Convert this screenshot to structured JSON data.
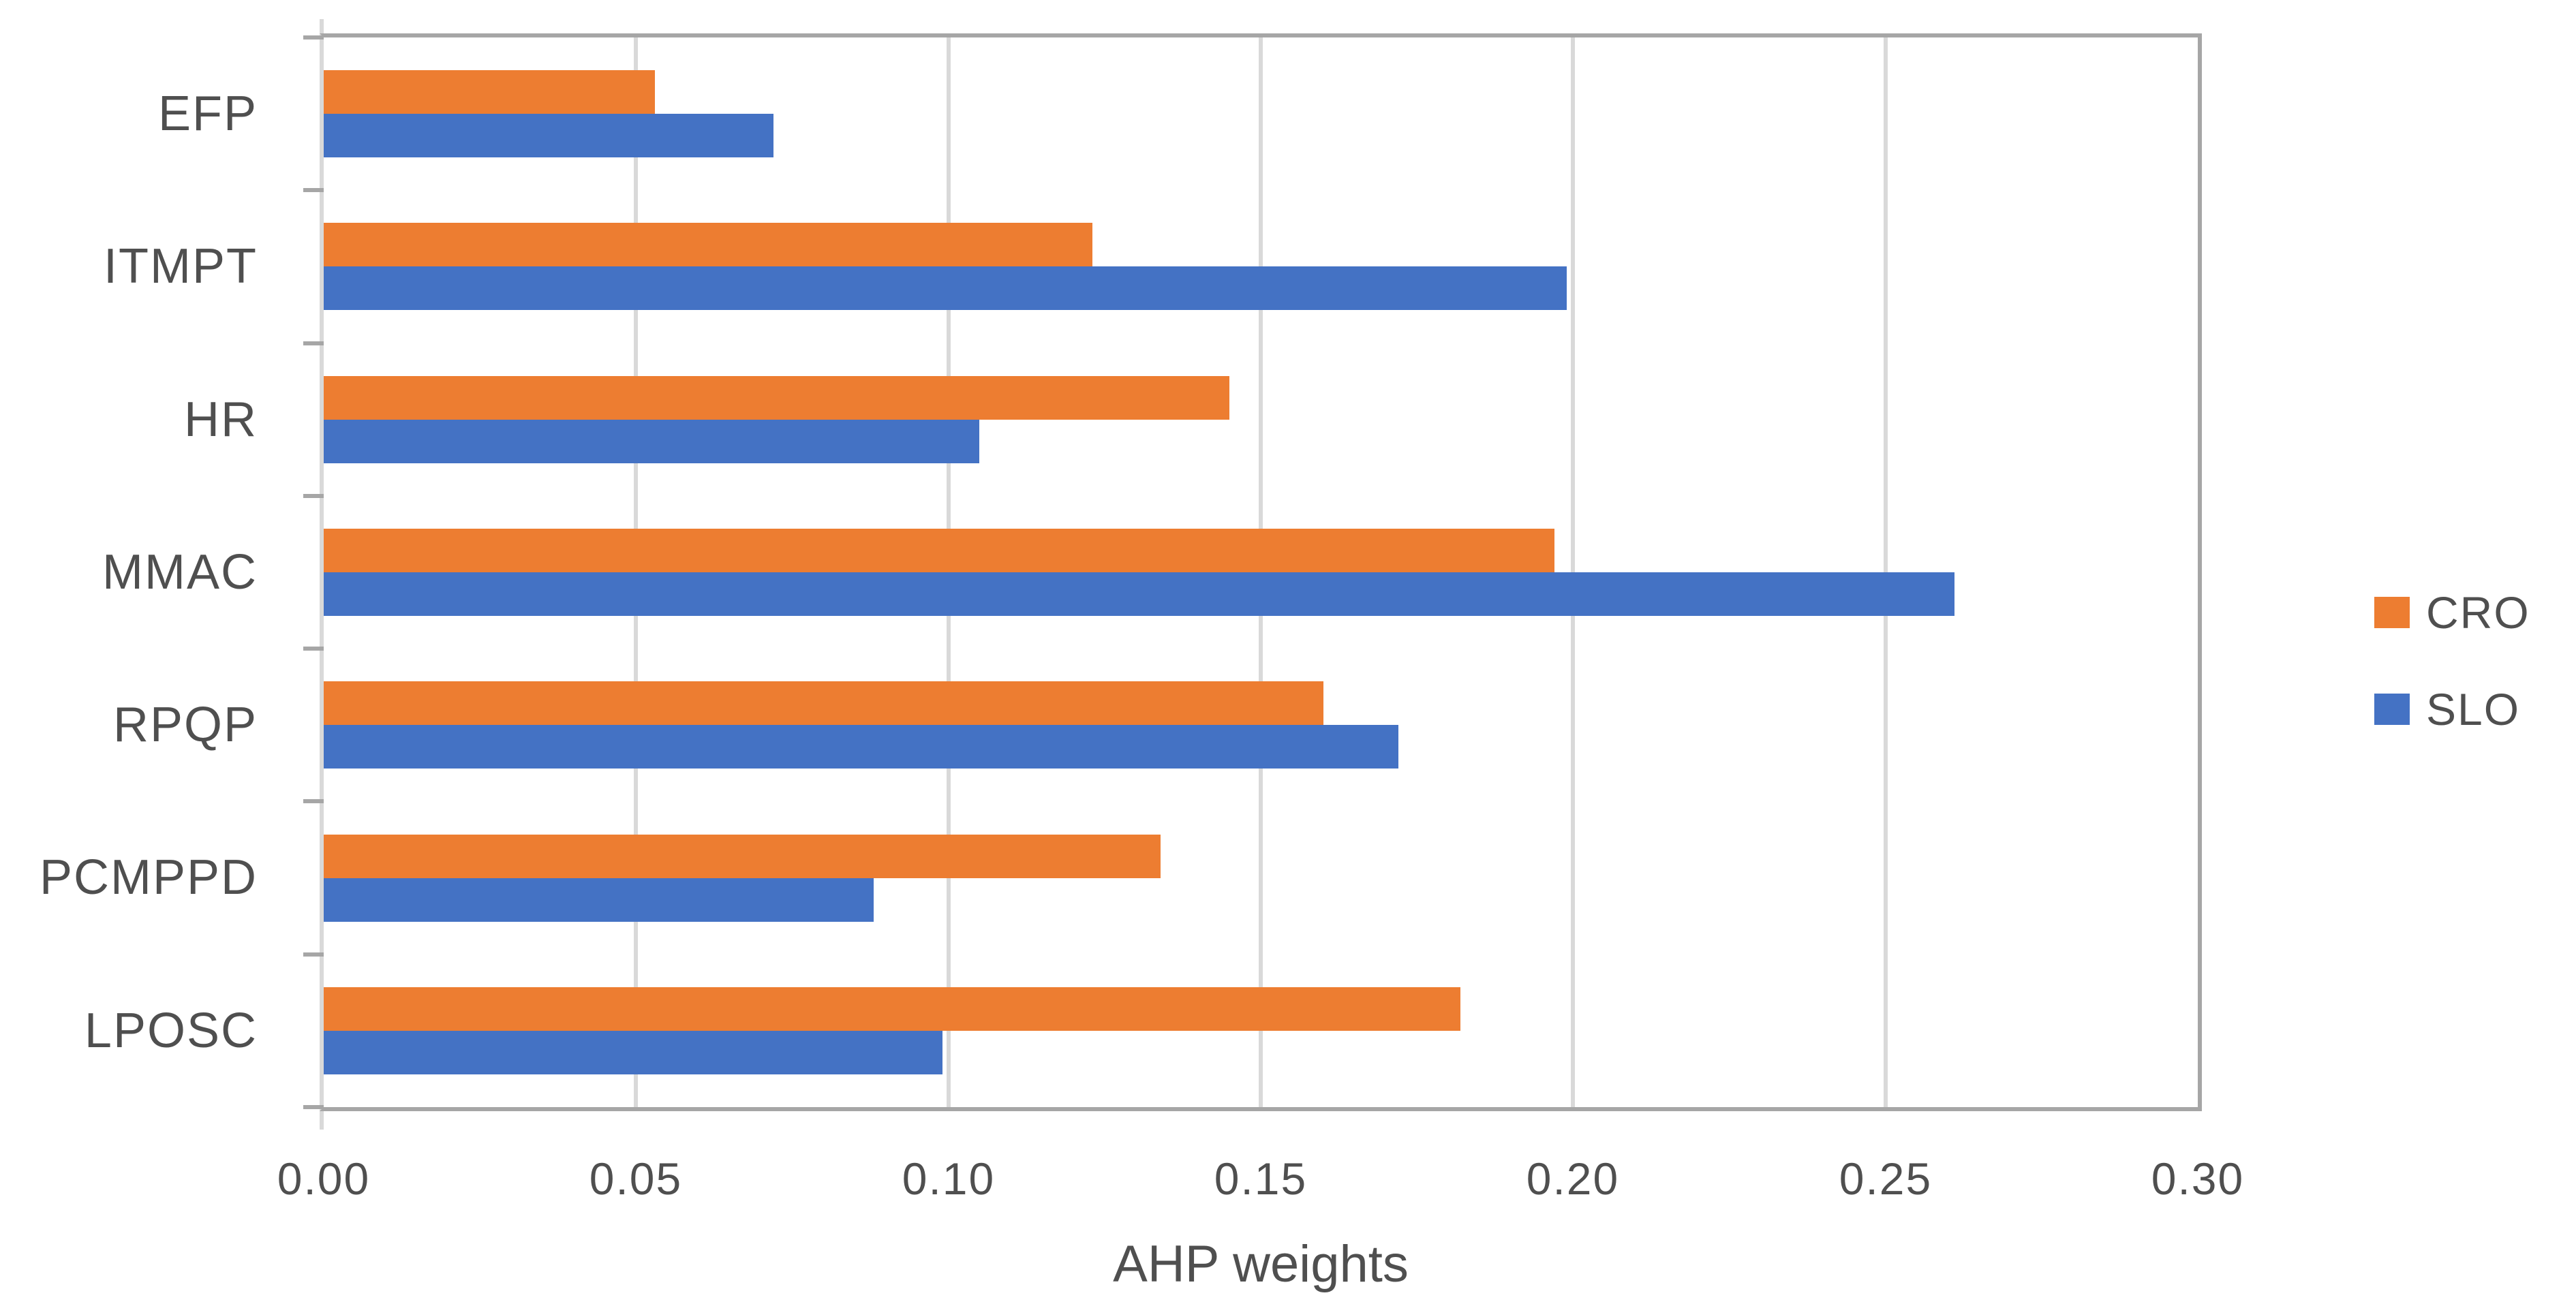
{
  "chart_data": {
    "type": "bar",
    "orientation": "horizontal",
    "title": "",
    "xlabel": "AHP weights",
    "ylabel": "",
    "categories": [
      "EFP",
      "ITMPT",
      "HR",
      "MMAC",
      "RPQP",
      "PCMPPD",
      "LPOSC"
    ],
    "series": [
      {
        "name": "CRO",
        "color": "#ED7D31",
        "values": [
          0.053,
          0.123,
          0.145,
          0.197,
          0.16,
          0.134,
          0.182
        ]
      },
      {
        "name": "SLO",
        "color": "#4472C4",
        "values": [
          0.072,
          0.199,
          0.105,
          0.261,
          0.172,
          0.088,
          0.099
        ]
      }
    ],
    "xlim": [
      0,
      0.3
    ],
    "xticks": [
      0.0,
      0.05,
      0.1,
      0.15,
      0.2,
      0.25,
      0.3
    ],
    "xtick_labels": [
      "0.00",
      "0.05",
      "0.10",
      "0.15",
      "0.20",
      "0.25",
      "0.30"
    ],
    "grid": "vertical",
    "legend_position": "right-middle",
    "colors": {
      "background": "#FFFFFF",
      "gridline": "#D9D9D9",
      "plot_border": "#A6A6A6",
      "axis_line": "#D9D9D9",
      "text": "#4F4F4F"
    }
  }
}
